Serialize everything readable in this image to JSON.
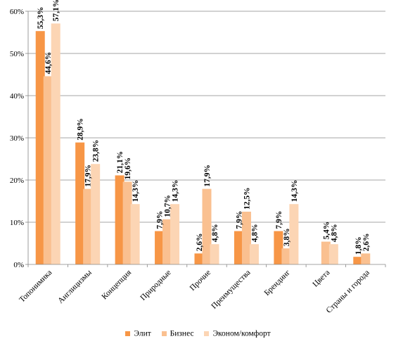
{
  "chart_data": {
    "type": "bar",
    "categories": [
      "Топонимика",
      "Англицизмы",
      "Концепция",
      "Природные",
      "Прочие",
      "Преимущества",
      "Брендинг",
      "Цвета",
      "Страны и города"
    ],
    "series": [
      {
        "name": "Элит",
        "color": "#f79646",
        "values": [
          55.3,
          28.9,
          21.1,
          7.9,
          2.6,
          7.9,
          7.9,
          null,
          1.8
        ],
        "labels": [
          "55,3%",
          "28,9%",
          "21,1%",
          "7,9%",
          "2,6%",
          "7,9%",
          "7,9%",
          "",
          "1,8%"
        ]
      },
      {
        "name": "Бизнес",
        "color": "#fac090",
        "values": [
          44.6,
          17.9,
          19.6,
          10.7,
          17.9,
          12.5,
          3.8,
          5.4,
          2.6
        ],
        "labels": [
          "44,6%",
          "17,9%",
          "19,6%",
          "10,7%",
          "17,9%",
          "12,5%",
          "3,8%",
          "5,4%",
          "2,6%"
        ]
      },
      {
        "name": "Эконом/комфорт",
        "color": "#fcd5b4",
        "values": [
          57.1,
          23.8,
          14.3,
          14.3,
          4.8,
          4.8,
          14.3,
          4.8,
          null
        ],
        "labels": [
          "57,1%",
          "23,8%",
          "14,3%",
          "14,3%",
          "4,8%",
          "4,8%",
          "14,3%",
          "4,8%",
          ""
        ]
      }
    ],
    "yticks": [
      "0%",
      "10%",
      "20%",
      "30%",
      "40%",
      "50%",
      "60%"
    ],
    "ylim": [
      0,
      60
    ],
    "grid": true,
    "legend_position": "bottom"
  }
}
